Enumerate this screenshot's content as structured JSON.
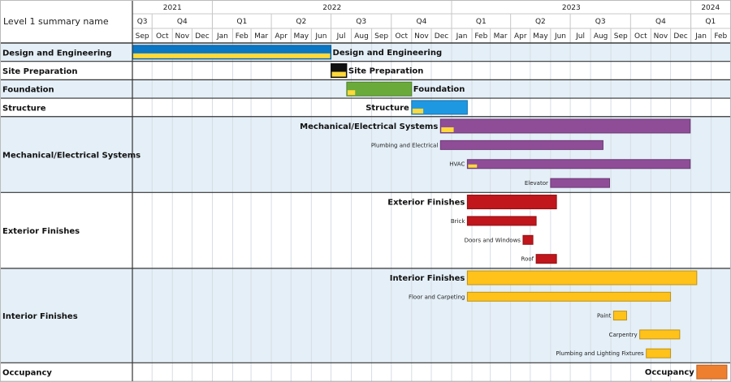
{
  "corner_label": "Level 1 summary name",
  "chart_data": {
    "type": "gantt",
    "timeline": {
      "start": "2021-09-01",
      "end": "2024-03-01"
    },
    "colors": {
      "row_shade": "#e4eff7",
      "row_plain": "#ffffff",
      "grid": "#c8c8c8",
      "border": "#333333",
      "progress": "#ffd93b"
    },
    "years": [
      {
        "label": "2021",
        "start": "2021-09-01",
        "end": "2022-01-01"
      },
      {
        "label": "2022",
        "start": "2022-01-01",
        "end": "2023-01-01"
      },
      {
        "label": "2023",
        "start": "2023-01-01",
        "end": "2024-01-01"
      },
      {
        "label": "2024",
        "start": "2024-01-01",
        "end": "2024-03-01"
      }
    ],
    "quarters": [
      {
        "label": "Q3",
        "start": "2021-09-01",
        "end": "2021-10-01"
      },
      {
        "label": "Q4",
        "start": "2021-10-01",
        "end": "2022-01-01"
      },
      {
        "label": "Q1",
        "start": "2022-01-01",
        "end": "2022-04-01"
      },
      {
        "label": "Q2",
        "start": "2022-04-01",
        "end": "2022-07-01"
      },
      {
        "label": "Q3",
        "start": "2022-07-01",
        "end": "2022-10-01"
      },
      {
        "label": "Q4",
        "start": "2022-10-01",
        "end": "2023-01-01"
      },
      {
        "label": "Q1",
        "start": "2023-01-01",
        "end": "2023-04-01"
      },
      {
        "label": "Q2",
        "start": "2023-04-01",
        "end": "2023-07-01"
      },
      {
        "label": "Q3",
        "start": "2023-07-01",
        "end": "2023-10-01"
      },
      {
        "label": "Q4",
        "start": "2023-10-01",
        "end": "2024-01-01"
      },
      {
        "label": "Q1",
        "start": "2024-01-01",
        "end": "2024-03-01"
      }
    ],
    "months": [
      "Sep",
      "Oct",
      "Nov",
      "Dec",
      "Jan",
      "Feb",
      "Mar",
      "Apr",
      "May",
      "Jun",
      "Jul",
      "Aug",
      "Sep",
      "Oct",
      "Nov",
      "Dec",
      "Jan",
      "Feb",
      "Mar",
      "Apr",
      "May",
      "Jun",
      "Jul",
      "Aug",
      "Sep",
      "Oct",
      "Nov",
      "Dec",
      "Jan",
      "Feb"
    ],
    "groups": [
      {
        "name": "Design and Engineering",
        "shaded": true,
        "summary": {
          "start": "2021-09-01",
          "end": "2022-07-01",
          "color": "#0a76c4",
          "progress": 1.0,
          "label": "Design and Engineering",
          "label_side": "right"
        },
        "tasks": []
      },
      {
        "name": "Site Preparation",
        "shaded": false,
        "summary": {
          "start": "2022-07-01",
          "end": "2022-07-25",
          "color": "#111111",
          "progress": 1.0,
          "label": "Site Preparation",
          "label_side": "right"
        },
        "tasks": []
      },
      {
        "name": "Foundation",
        "shaded": true,
        "summary": {
          "start": "2022-07-25",
          "end": "2022-11-01",
          "color": "#6aaa3a",
          "progress": 0.12,
          "label": "Foundation",
          "label_side": "right"
        },
        "tasks": []
      },
      {
        "name": "Structure",
        "shaded": false,
        "summary": {
          "start": "2022-11-01",
          "end": "2023-01-25",
          "color": "#1f98e2",
          "progress": 0.2,
          "label": "Structure",
          "label_side": "left"
        },
        "tasks": []
      },
      {
        "name": "Mechanical/Electrical Systems",
        "shaded": true,
        "summary": {
          "start": "2022-12-15",
          "end": "2023-12-31",
          "color": "#8f4d98",
          "progress": 0.05,
          "label": "Mechanical/Electrical Systems",
          "label_side": "left"
        },
        "tasks": [
          {
            "name": "Plumbing and Electrical",
            "start": "2022-12-15",
            "end": "2023-08-20",
            "color": "#8f4d98",
            "progress": 0
          },
          {
            "name": "HVAC",
            "start": "2023-01-25",
            "end": "2023-12-31",
            "color": "#8f4d98",
            "progress": 0.04
          },
          {
            "name": "Elevator",
            "start": "2023-06-01",
            "end": "2023-08-30",
            "color": "#8f4d98",
            "progress": 0
          }
        ]
      },
      {
        "name": "Exterior Finishes",
        "shaded": false,
        "summary": {
          "start": "2023-01-25",
          "end": "2023-06-10",
          "color": "#c0161c",
          "progress": 0,
          "label": "Exterior Finishes",
          "label_side": "left"
        },
        "tasks": [
          {
            "name": "Brick",
            "start": "2023-01-25",
            "end": "2023-05-10",
            "color": "#c0161c",
            "progress": 0
          },
          {
            "name": "Doors and Windows",
            "start": "2023-04-20",
            "end": "2023-05-05",
            "color": "#c0161c",
            "progress": 0
          },
          {
            "name": "Roof",
            "start": "2023-05-10",
            "end": "2023-06-10",
            "color": "#c0161c",
            "progress": 0
          }
        ]
      },
      {
        "name": "Interior Finishes",
        "shaded": true,
        "summary": {
          "start": "2023-01-25",
          "end": "2024-01-10",
          "color": "#ffc21a",
          "progress": 0,
          "label": "Interior Finishes",
          "label_side": "left"
        },
        "tasks": [
          {
            "name": "Floor and Carpeting",
            "start": "2023-01-25",
            "end": "2023-12-01",
            "color": "#ffc21a",
            "progress": 0
          },
          {
            "name": "Paint",
            "start": "2023-09-05",
            "end": "2023-09-25",
            "color": "#ffc21a",
            "progress": 0
          },
          {
            "name": "Carpentry",
            "start": "2023-10-15",
            "end": "2023-12-15",
            "color": "#ffc21a",
            "progress": 0
          },
          {
            "name": "Plumbing and Lighting Fixtures",
            "start": "2023-10-25",
            "end": "2023-12-01",
            "color": "#ffc21a",
            "progress": 0
          }
        ]
      },
      {
        "name": "Occupancy",
        "shaded": false,
        "summary": {
          "start": "2024-01-10",
          "end": "2024-02-25",
          "color": "#ee7f2f",
          "progress": 0,
          "label": "Occupancy",
          "label_side": "left"
        },
        "tasks": []
      }
    ]
  }
}
